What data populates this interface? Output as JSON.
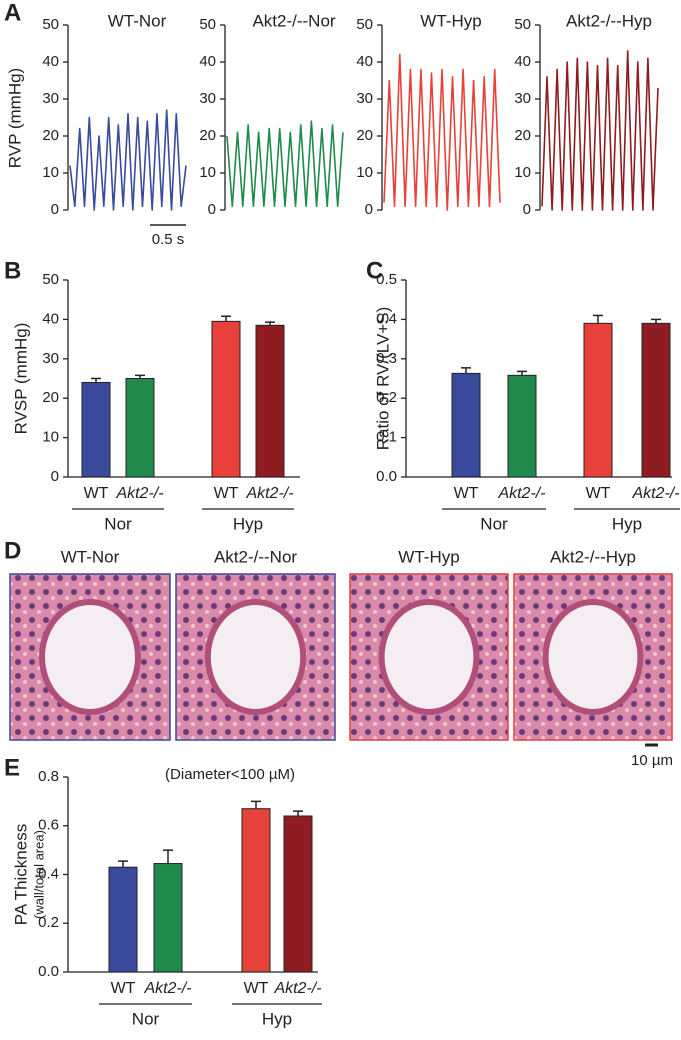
{
  "chart_data": [
    {
      "type": "line",
      "panel": "A",
      "title": "WT-Nor",
      "y_label": "RVP (mmHg)",
      "scale_bar": "0.5 s",
      "color": "#3a4a9c",
      "values": [
        12,
        1,
        22,
        1,
        25,
        0,
        20,
        1,
        25,
        0,
        23,
        1,
        26,
        0,
        25,
        1,
        24,
        0,
        26,
        1,
        27,
        0,
        26,
        1,
        12
      ],
      "ylim": [
        0,
        50
      ],
      "yticks": [
        0,
        10,
        20,
        30,
        40,
        50
      ]
    },
    {
      "type": "line",
      "title": "Akt2-/--Nor",
      "color": "#1f8a4c",
      "values": [
        20,
        1,
        21,
        1,
        23,
        1,
        21,
        1,
        22,
        1,
        22,
        1,
        21,
        1,
        23,
        1,
        24,
        1,
        22,
        1,
        23,
        1,
        21
      ],
      "ylim": [
        0,
        50
      ],
      "yticks": [
        0,
        10,
        20,
        30,
        40,
        50
      ]
    },
    {
      "type": "line",
      "title": "WT-Hyp",
      "color": "#e8413c",
      "values": [
        2,
        35,
        1,
        42,
        1,
        38,
        1,
        38,
        1,
        37,
        1,
        38,
        0,
        36,
        1,
        38,
        1,
        35,
        1,
        36,
        1,
        38,
        2
      ],
      "ylim": [
        0,
        50
      ],
      "yticks": [
        0,
        10,
        20,
        30,
        40,
        50
      ]
    },
    {
      "type": "line",
      "title": "Akt2-/--Hyp",
      "color": "#8e1c20",
      "values": [
        1,
        36,
        0,
        38,
        0,
        40,
        0,
        41,
        0,
        40,
        0,
        39,
        0,
        41,
        0,
        39,
        0,
        43,
        0,
        40,
        0,
        41,
        0,
        33
      ],
      "ylim": [
        0,
        50
      ],
      "yticks": [
        0,
        10,
        20,
        30,
        40,
        50
      ]
    },
    {
      "type": "bar",
      "panel": "B",
      "y_label": "RVSP (mmHg)",
      "categories": [
        "WT",
        "Akt2-/-",
        "WT",
        "Akt2-/-"
      ],
      "groups": [
        "Nor",
        "Hyp"
      ],
      "values": [
        24,
        25,
        39.5,
        38.5
      ],
      "errors": [
        1,
        0.8,
        1.3,
        0.8
      ],
      "colors": [
        "#3a4a9c",
        "#1f8a4c",
        "#e8413c",
        "#8e1c20"
      ],
      "ylim": [
        0,
        50
      ],
      "yticks": [
        0,
        10,
        20,
        30,
        40,
        50
      ]
    },
    {
      "type": "bar",
      "panel": "C",
      "y_label": "Ratio of RV/(LV+S)",
      "categories": [
        "WT",
        "Akt2-/-",
        "WT",
        "Akt2-/-"
      ],
      "groups": [
        "Nor",
        "Hyp"
      ],
      "values": [
        0.263,
        0.258,
        0.39,
        0.39
      ],
      "errors": [
        0.014,
        0.01,
        0.02,
        0.01
      ],
      "colors": [
        "#3a4a9c",
        "#1f8a4c",
        "#e8413c",
        "#8e1c20"
      ],
      "ylim": [
        0,
        0.5
      ],
      "yticks": [
        {
          "value": 0,
          "label": "0.0"
        },
        0.1,
        0.2,
        0.3,
        0.4,
        0.5
      ]
    },
    {
      "type": "bar",
      "panel": "E",
      "y_label": "PA Thickness",
      "y_sublabel": "(wall/total area)",
      "annotation": "(Diameter<100 µM)",
      "categories": [
        "WT",
        "Akt2-/-",
        "WT",
        "Akt2-/-"
      ],
      "groups": [
        "Nor",
        "Hyp"
      ],
      "values": [
        0.43,
        0.445,
        0.67,
        0.64
      ],
      "errors": [
        0.025,
        0.055,
        0.03,
        0.02
      ],
      "colors": [
        "#3a4a9c",
        "#1f8a4c",
        "#e8413c",
        "#8e1c20"
      ],
      "ylim": [
        0,
        0.8
      ],
      "yticks": [
        {
          "value": 0,
          "label": "0.0"
        },
        0.2,
        0.4,
        0.6,
        0.8
      ]
    }
  ],
  "histology": {
    "panel": "D",
    "scale_bar": "10 µm",
    "images": [
      {
        "title": "WT-Nor",
        "color": "#3a4a9c"
      },
      {
        "title": "Akt2-/--Nor",
        "color": "#3a4a9c"
      },
      {
        "title": "WT-Hyp",
        "color": "#e8413c"
      },
      {
        "title": "Akt2-/--Hyp",
        "color": "#e8413c"
      }
    ]
  }
}
